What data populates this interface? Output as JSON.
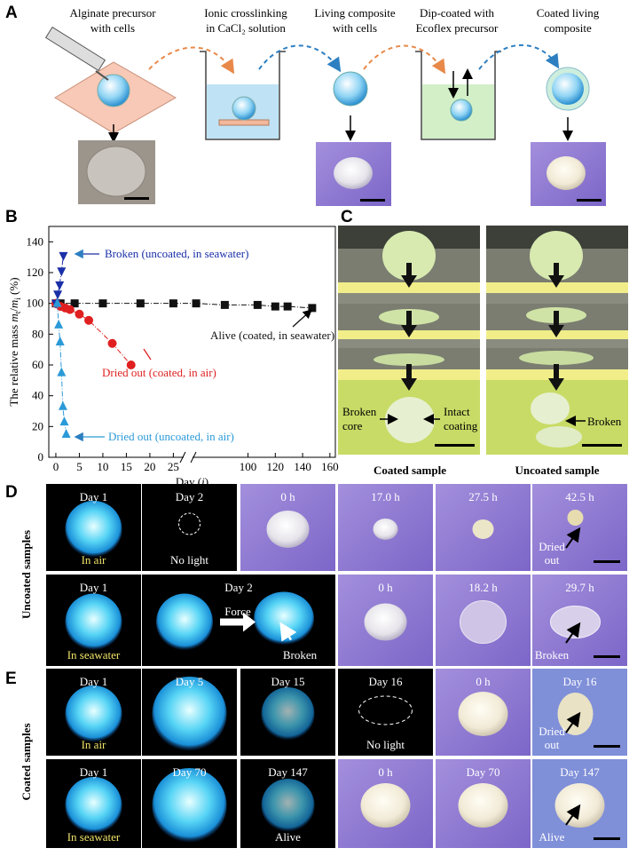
{
  "panel_a": {
    "label": "A",
    "steps": [
      [
        "Alginate precursor",
        "with cells"
      ],
      [
        "Ionic crosslinking",
        "in CaCl₂ solution"
      ],
      [
        "Living composite",
        "with cells"
      ],
      [
        "Dip-coated with",
        "Ecoflex precursor"
      ],
      [
        "Coated living",
        "composite"
      ]
    ]
  },
  "chart_data": {
    "type": "line",
    "panel_label": "B",
    "ylabel": [
      "The relative mass ",
      "m",
      "t",
      "/",
      "m",
      "i",
      " (%)"
    ],
    "xlabel": [
      "Day (",
      "i",
      ")"
    ],
    "xlim": [
      -1.5,
      164
    ],
    "xbreak": [
      27,
      60
    ],
    "ylim": [
      0,
      150
    ],
    "xticks": [
      0,
      5,
      10,
      15,
      20,
      25,
      100,
      120,
      140,
      160
    ],
    "yticks": [
      0,
      20,
      40,
      60,
      80,
      100,
      120,
      140
    ],
    "series": [
      {
        "name": "Alive (coated, in seawater)",
        "color": "#111111",
        "marker": "square",
        "x": [
          0,
          1,
          4,
          10,
          18,
          25,
          62,
          83,
          107,
          120,
          129,
          147
        ],
        "values": [
          100,
          100,
          100,
          100,
          100,
          100,
          100,
          99,
          99,
          98,
          98,
          97
        ]
      },
      {
        "name": "Dried out (coated, in air)",
        "color": "#e02020",
        "marker": "circle",
        "x": [
          0,
          1,
          2,
          3,
          5,
          7,
          12,
          16
        ],
        "values": [
          100,
          98,
          97,
          96,
          93,
          89,
          74,
          60
        ]
      },
      {
        "name": "Broken (uncoated, in seawater)",
        "color": "#1a2fa8",
        "marker": "triangle-down",
        "x": [
          0,
          0.4,
          0.8,
          1.2,
          1.6
        ],
        "values": [
          100,
          106,
          112,
          121,
          131
        ]
      },
      {
        "name": "Dried out (uncoated, in air)",
        "color": "#2b9ad8",
        "marker": "triangle-up",
        "x": [
          0.3,
          0.6,
          0.9,
          1.2,
          1.5,
          1.8,
          2.2
        ],
        "values": [
          100,
          86,
          75,
          55,
          33,
          23,
          15
        ]
      }
    ]
  },
  "panel_c": {
    "label": "C",
    "broken_core": [
      "Broken",
      "core"
    ],
    "intact_coating": [
      "Intact",
      "coating"
    ],
    "broken": "Broken",
    "captions": [
      "Coated sample",
      "Uncoated sample"
    ]
  },
  "panel_d": {
    "label": "D",
    "side_label": "Uncoated samples",
    "rows": [
      [
        {
          "top": "Day 1",
          "bottom": [
            "In air"
          ]
        },
        {
          "top": "Day 2",
          "bottom": [
            "No light"
          ]
        },
        {
          "top": "0 h"
        },
        {
          "top": "17.0 h"
        },
        {
          "top": "27.5 h"
        },
        {
          "top": "42.5 h",
          "bottom": [
            "Dried",
            "out"
          ]
        }
      ],
      [
        {
          "top": "Day 1",
          "bottom": [
            "In seawater"
          ]
        },
        {
          "top": "Day 2",
          "extra": "Force",
          "bottom": [
            "Broken"
          ]
        },
        {
          "top": "0 h"
        },
        {
          "top": "18.2 h"
        },
        {
          "top": "29.7 h",
          "bottom": [
            "Broken"
          ]
        }
      ]
    ]
  },
  "panel_e": {
    "label": "E",
    "side_label": "Coated samples",
    "rows": [
      [
        {
          "top": "Day 1",
          "bottom": [
            "In air"
          ]
        },
        {
          "top": "Day 5"
        },
        {
          "top": "Day 15"
        },
        {
          "top": "Day 16",
          "bottom": [
            "No light"
          ]
        },
        {
          "top": "0 h"
        },
        {
          "top": "Day 16",
          "bottom": [
            "Dried",
            "out"
          ]
        }
      ],
      [
        {
          "top": "Day 1",
          "bottom": [
            "In seawater"
          ]
        },
        {
          "top": "Day 70"
        },
        {
          "top": "Day 147",
          "bottom": [
            "Alive"
          ]
        },
        {
          "top": "0 h"
        },
        {
          "top": "Day 70"
        },
        {
          "top": "Day 147",
          "bottom": [
            "Alive"
          ]
        }
      ]
    ]
  }
}
